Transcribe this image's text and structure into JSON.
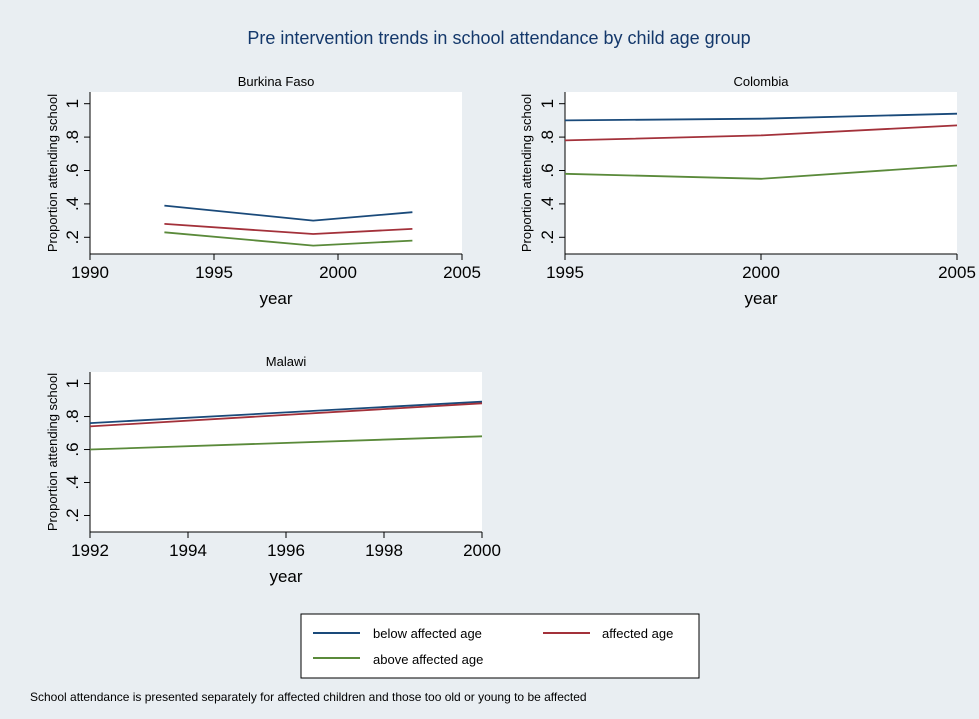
{
  "figure": {
    "title": "Pre intervention trends in school attendance by child age group",
    "note": "School attendance is presented separately for affected children and those too old or young to be affected"
  },
  "legend": {
    "placement": "bottom-center",
    "items": [
      {
        "label": "below affected age",
        "color": "#1a4a7a"
      },
      {
        "label": "affected age",
        "color": "#a3313a"
      },
      {
        "label": "above affected age",
        "color": "#5a8a3a"
      }
    ]
  },
  "chart_data": [
    {
      "type": "line",
      "title": "Burkina Faso",
      "xlabel": "year",
      "ylabel": "Proportion attending school",
      "xlim": [
        1990,
        2005
      ],
      "ylim": [
        0.1,
        1.07
      ],
      "xticks": [
        1990,
        1995,
        2000,
        2005
      ],
      "xtick_labels": [
        "1990",
        "1995",
        "2000",
        "2005"
      ],
      "yticks": [
        0.2,
        0.4,
        0.6,
        0.8,
        1
      ],
      "ytick_labels": [
        ".2",
        ".4",
        ".6",
        ".8",
        "1"
      ],
      "x": [
        1993,
        1999,
        2003
      ],
      "grid": false,
      "series": [
        {
          "name": "below affected age",
          "color": "#1a4a7a",
          "values": [
            0.39,
            0.3,
            0.35
          ]
        },
        {
          "name": "affected age",
          "color": "#a3313a",
          "values": [
            0.28,
            0.22,
            0.25
          ]
        },
        {
          "name": "above affected age",
          "color": "#5a8a3a",
          "values": [
            0.23,
            0.15,
            0.18
          ]
        }
      ]
    },
    {
      "type": "line",
      "title": "Colombia",
      "xlabel": "year",
      "ylabel": "Proportion attending school",
      "xlim": [
        1995,
        2005
      ],
      "ylim": [
        0.1,
        1.07
      ],
      "xticks": [
        1995,
        2000,
        2005
      ],
      "xtick_labels": [
        "1995",
        "2000",
        "2005"
      ],
      "yticks": [
        0.2,
        0.4,
        0.6,
        0.8,
        1
      ],
      "ytick_labels": [
        ".2",
        ".4",
        ".6",
        ".8",
        "1"
      ],
      "x": [
        1995,
        2000,
        2005
      ],
      "grid": false,
      "series": [
        {
          "name": "below affected age",
          "color": "#1a4a7a",
          "values": [
            0.9,
            0.91,
            0.94
          ]
        },
        {
          "name": "affected age",
          "color": "#a3313a",
          "values": [
            0.78,
            0.81,
            0.87
          ]
        },
        {
          "name": "above affected age",
          "color": "#5a8a3a",
          "values": [
            0.58,
            0.55,
            0.63
          ]
        }
      ]
    },
    {
      "type": "line",
      "title": "Malawi",
      "xlabel": "year",
      "ylabel": "Proportion attending school",
      "xlim": [
        1992,
        2000
      ],
      "ylim": [
        0.1,
        1.07
      ],
      "xticks": [
        1992,
        1994,
        1996,
        1998,
        2000
      ],
      "xtick_labels": [
        "1992",
        "1994",
        "1996",
        "1998",
        "2000"
      ],
      "yticks": [
        0.2,
        0.4,
        0.6,
        0.8,
        1
      ],
      "ytick_labels": [
        ".2",
        ".4",
        ".6",
        ".8",
        "1"
      ],
      "x": [
        1992,
        2000
      ],
      "grid": false,
      "series": [
        {
          "name": "below affected age",
          "color": "#1a4a7a",
          "values": [
            0.76,
            0.89
          ]
        },
        {
          "name": "affected age",
          "color": "#a3313a",
          "values": [
            0.74,
            0.88
          ]
        },
        {
          "name": "above affected age",
          "color": "#5a8a3a",
          "values": [
            0.6,
            0.68
          ]
        }
      ]
    }
  ]
}
